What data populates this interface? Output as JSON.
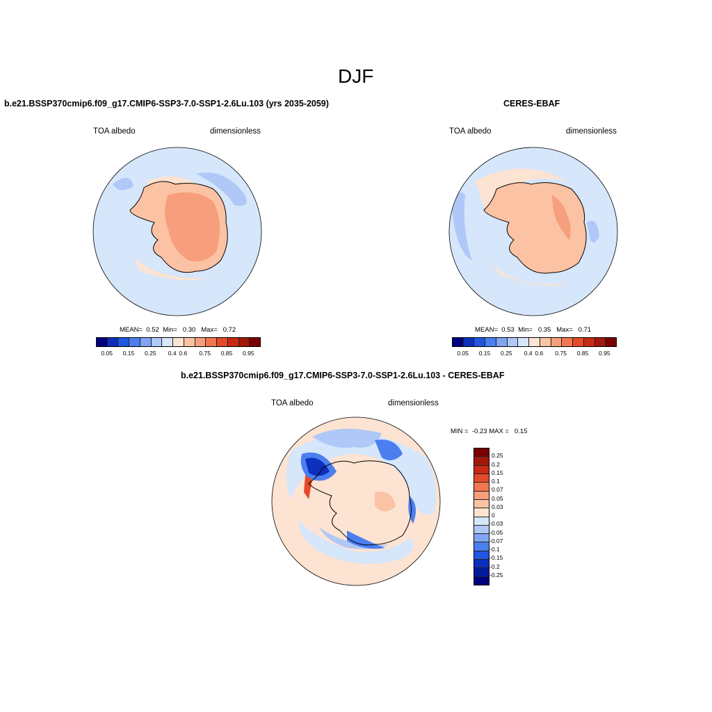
{
  "page_title": "DJF",
  "panels": [
    {
      "title": "b.e21.BSSP370cmip6.f09_g17.CMIP6-SSP3-7.0-SSP1-2.6Lu.103 (yrs 2035-2059)",
      "left_label": "TOA albedo",
      "right_label": "dimensionless",
      "stats": {
        "mean_label": "MEAN=",
        "mean": "0.52",
        "min_label": "Min=",
        "min": "0.30",
        "max_label": "Max=",
        "max": "0.72"
      }
    },
    {
      "title": "CERES-EBAF",
      "left_label": "TOA albedo",
      "right_label": "dimensionless",
      "stats": {
        "mean_label": "MEAN=",
        "mean": "0.53",
        "min_label": "Min=",
        "min": "0.35",
        "max_label": "Max=",
        "max": "0.71"
      }
    },
    {
      "title": "b.e21.BSSP370cmip6.f09_g17.CMIP6-SSP3-7.0-SSP1-2.6Lu.103 - CERES-EBAF",
      "left_label": "TOA albedo",
      "right_label": "dimensionless",
      "stats": {
        "min_label": "MIN =",
        "min": "-0.23",
        "max_label": "MAX =",
        "max": "0.15"
      }
    }
  ],
  "colorbars": {
    "abs_ticks": [
      "0.05",
      "0.15",
      "0.25",
      "0.4",
      "0.6",
      "0.75",
      "0.85",
      "0.95"
    ],
    "abs_colors": [
      "#00007f",
      "#0c2fbc",
      "#2156e0",
      "#4b7ff0",
      "#81a5f3",
      "#afc8f8",
      "#d6e6fb",
      "#fde3d1",
      "#fbc2a4",
      "#f79f7c",
      "#f2764f",
      "#e4492a",
      "#c82912",
      "#a3170b",
      "#7a0000"
    ],
    "diff_ticks": [
      "0.25",
      "0.2",
      "0.15",
      "0.1",
      "0.07",
      "0.05",
      "0.03",
      "0",
      "-0.03",
      "-0.05",
      "-0.07",
      "-0.1",
      "-0.15",
      "-0.2",
      "-0.25"
    ],
    "diff_colors": [
      "#7a0000",
      "#a3170b",
      "#c82912",
      "#e4492a",
      "#f2764f",
      "#f79f7c",
      "#fbc2a4",
      "#fde3d1",
      "#d6e6fb",
      "#afc8f8",
      "#81a5f3",
      "#4b7ff0",
      "#2156e0",
      "#0c2fbc",
      "#001c9c",
      "#00007f"
    ]
  },
  "map_colors": {
    "ocean": "#d6e6fb",
    "ocean_mid": "#afc8f8",
    "ice_light": "#fde3d1",
    "land": "#fbc2a4",
    "land_dark": "#f79f7c",
    "neg_strong": "#2156e0",
    "neg_mid": "#4b7ff0",
    "neg_deep": "#0c2fbc",
    "pos_strong": "#e4492a"
  }
}
